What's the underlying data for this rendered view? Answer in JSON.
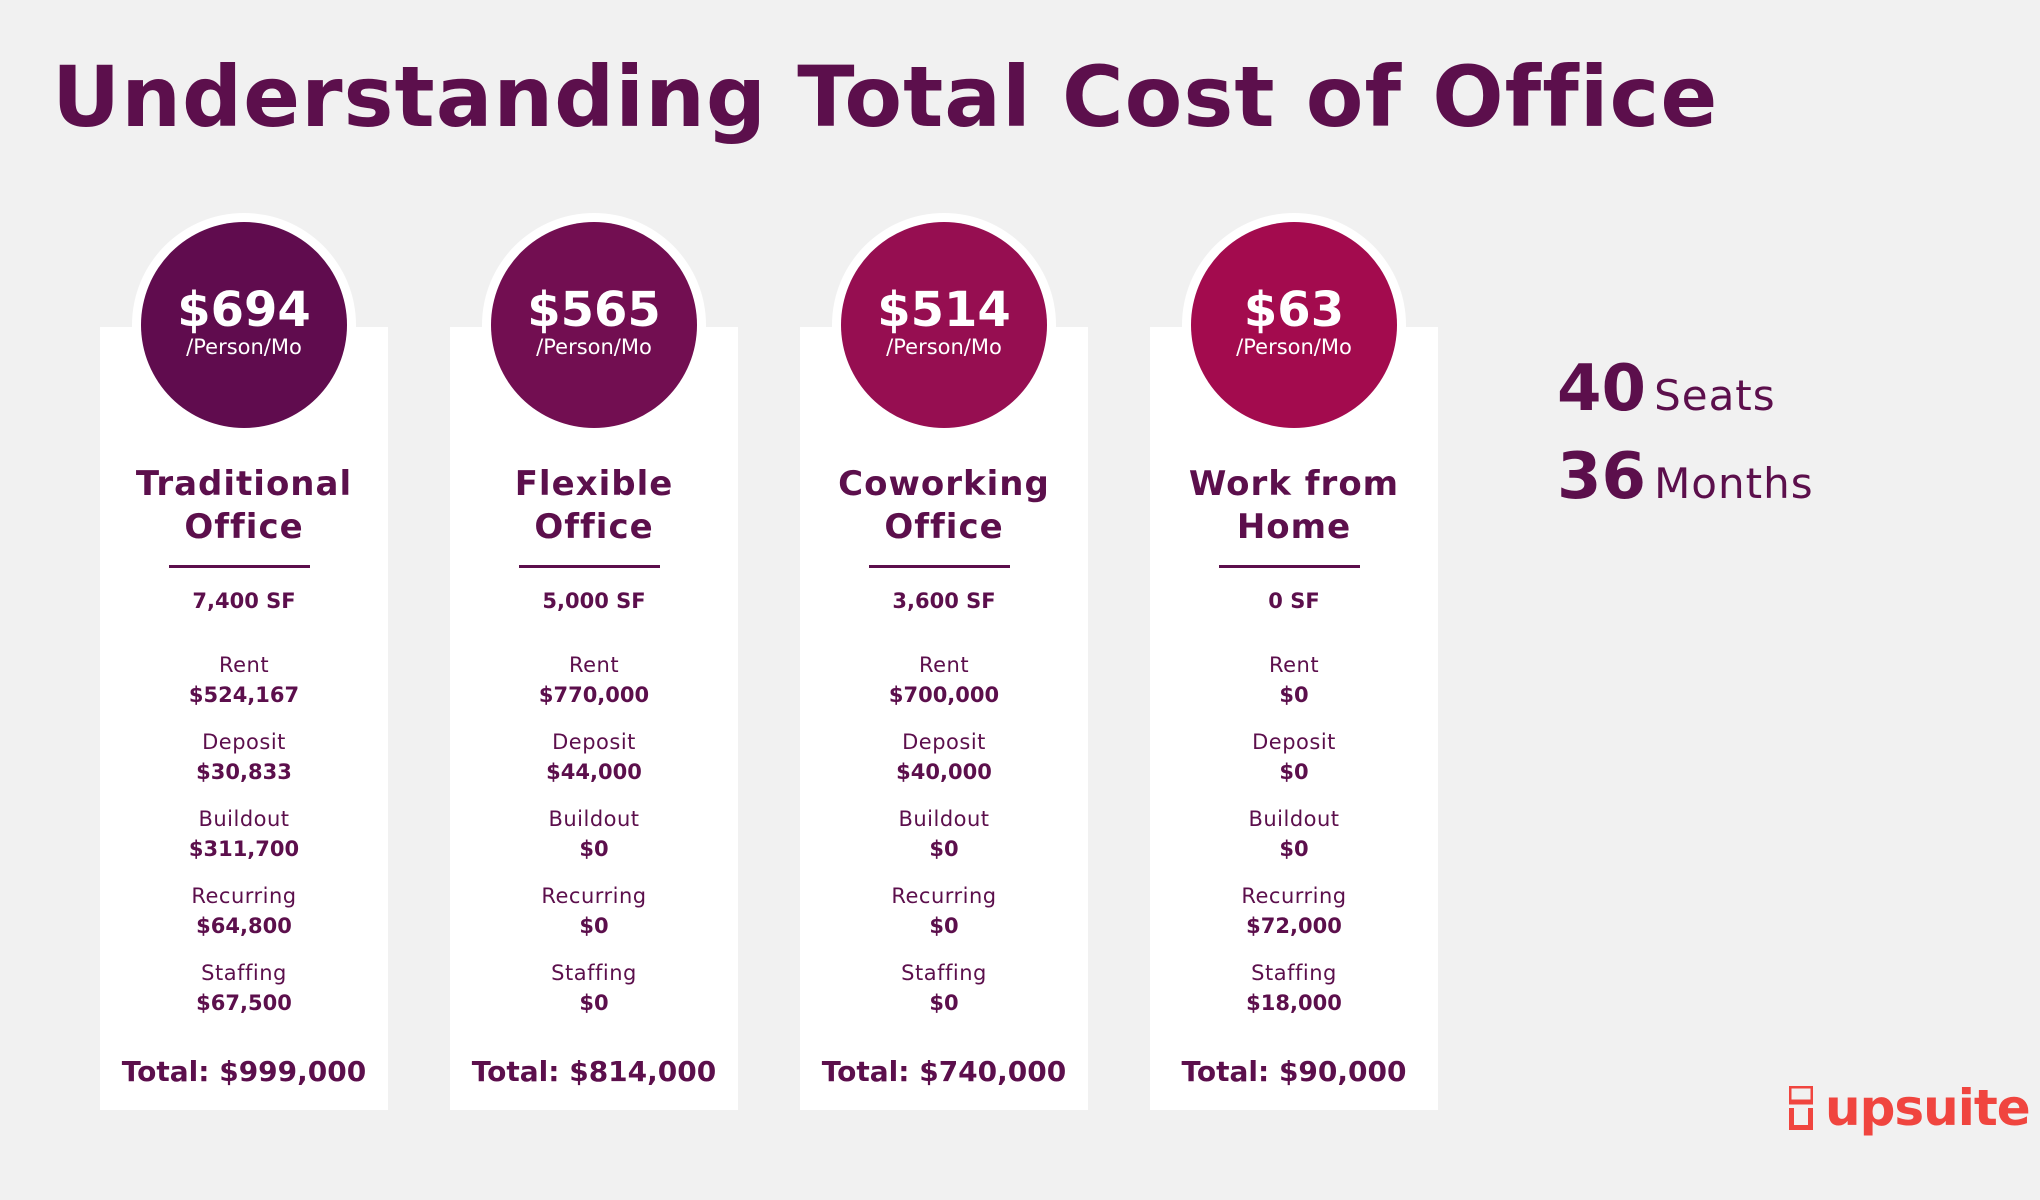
{
  "title": "Understanding Total Cost of Office",
  "options": [
    {
      "price": "$694",
      "per": "/Person/Mo",
      "name": [
        "Traditional",
        "Office"
      ],
      "sf": "7,400 SF",
      "color": "#600c4e",
      "items": [
        {
          "label": "Rent",
          "value": "$524,167"
        },
        {
          "label": "Deposit",
          "value": "$30,833"
        },
        {
          "label": "Buildout",
          "value": "$311,700"
        },
        {
          "label": "Recurring",
          "value": "$64,800"
        },
        {
          "label": "Staffing",
          "value": "$67,500"
        }
      ],
      "total": "Total: $999,000"
    },
    {
      "price": "$565",
      "per": "/Person/Mo",
      "name": [
        "Flexible",
        "Office"
      ],
      "sf": "5,000 SF",
      "color": "#720e51",
      "items": [
        {
          "label": "Rent",
          "value": "$770,000"
        },
        {
          "label": "Deposit",
          "value": "$44,000"
        },
        {
          "label": "Buildout",
          "value": "$0"
        },
        {
          "label": "Recurring",
          "value": "$0"
        },
        {
          "label": "Staffing",
          "value": "$0"
        }
      ],
      "total": "Total: $814,000"
    },
    {
      "price": "$514",
      "per": "/Person/Mo",
      "name": [
        "Coworking",
        "Office"
      ],
      "sf": "3,600 SF",
      "color": "#960e51",
      "items": [
        {
          "label": "Rent",
          "value": "$700,000"
        },
        {
          "label": "Deposit",
          "value": "$40,000"
        },
        {
          "label": "Buildout",
          "value": "$0"
        },
        {
          "label": "Recurring",
          "value": "$0"
        },
        {
          "label": "Staffing",
          "value": "$0"
        }
      ],
      "total": "Total: $740,000"
    },
    {
      "price": "$63",
      "per": "/Person/Mo",
      "name": [
        "Work from",
        "Home"
      ],
      "sf": "0 SF",
      "color": "#a30b4e",
      "items": [
        {
          "label": "Rent",
          "value": "$0"
        },
        {
          "label": "Deposit",
          "value": "$0"
        },
        {
          "label": "Buildout",
          "value": "$0"
        },
        {
          "label": "Recurring",
          "value": "$72,000"
        },
        {
          "label": "Staffing",
          "value": "$18,000"
        }
      ],
      "total": "Total: $90,000"
    }
  ],
  "stats": [
    {
      "number": "40",
      "unit": "Seats"
    },
    {
      "number": "36",
      "unit": "Months"
    }
  ],
  "logo": {
    "text": "upsuite",
    "color": "#f0453f"
  }
}
